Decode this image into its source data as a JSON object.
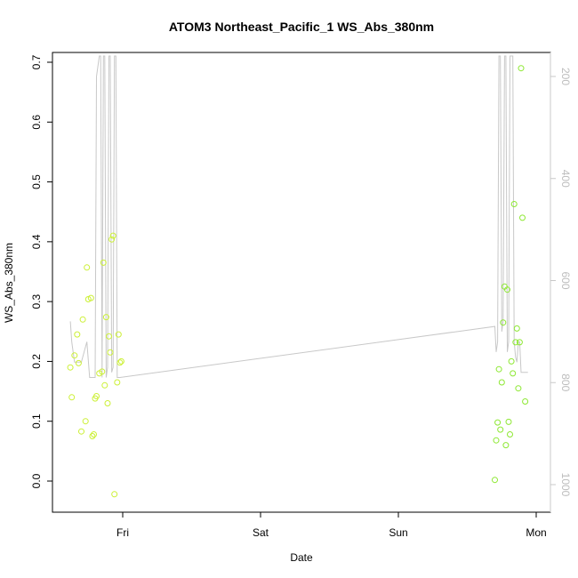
{
  "chart_data": {
    "type": "scatter",
    "title": "ATOM3 Northeast_Pacific_1 WS_Abs_380nm",
    "xlabel": "Date",
    "ylabel": "WS_Abs_380nm",
    "x_ticks": [
      "Fri",
      "Sat",
      "Sun",
      "Mon"
    ],
    "y_ticks": [
      "0.0",
      "0.1",
      "0.2",
      "0.3",
      "0.4",
      "0.5",
      "0.6",
      "0.7"
    ],
    "y_right_ticks": [
      "200",
      "400",
      "600",
      "800",
      "1000"
    ],
    "xlim_days": [
      -0.43,
      3.1
    ],
    "ylim": [
      -0.05,
      0.72
    ],
    "y_right_lim": [
      1050,
      165
    ],
    "grid": false,
    "colors": {
      "points_left": "#ccf036",
      "points_right": "#8de832",
      "right_axis_line": "#c8c8c8",
      "right_axis_text": "#bdbdbd"
    },
    "series": [
      {
        "kind": "points",
        "x": [
          -0.38,
          -0.37,
          -0.35,
          -0.33,
          -0.32,
          -0.3,
          -0.29,
          -0.27,
          -0.26,
          -0.25,
          -0.23,
          -0.22,
          -0.21,
          -0.2,
          -0.19,
          -0.17,
          -0.15,
          -0.14,
          -0.13,
          -0.12,
          -0.11,
          -0.1,
          -0.09,
          -0.08,
          -0.07,
          -0.06,
          -0.04,
          -0.03,
          -0.02,
          -0.01,
          2.7,
          2.71,
          2.72,
          2.73,
          2.74,
          2.75,
          2.76,
          2.77,
          2.78,
          2.79,
          2.8,
          2.81,
          2.82,
          2.83,
          2.84,
          2.85,
          2.86,
          2.87,
          2.88,
          2.89,
          2.9,
          2.92
        ],
        "y": [
          0.19,
          0.14,
          0.21,
          0.245,
          0.197,
          0.083,
          0.27,
          0.1,
          0.357,
          0.304,
          0.306,
          0.075,
          0.078,
          0.138,
          0.142,
          0.18,
          0.183,
          0.365,
          0.16,
          0.274,
          0.13,
          0.242,
          0.215,
          0.404,
          0.41,
          -0.022,
          0.165,
          0.245,
          0.198,
          0.2,
          0.002,
          0.068,
          0.098,
          0.187,
          0.086,
          0.165,
          0.265,
          0.325,
          0.06,
          0.32,
          0.099,
          0.078,
          0.2,
          0.18,
          0.463,
          0.232,
          0.255,
          0.155,
          0.232,
          0.69,
          0.44,
          0.133
        ]
      },
      {
        "kind": "line",
        "name": "",
        "x": [
          -0.38,
          -0.37,
          -0.35,
          -0.3,
          -0.26,
          -0.24,
          -0.22,
          -0.2,
          -0.19,
          -0.17,
          -0.16,
          -0.15,
          -0.14,
          -0.13,
          -0.12,
          -0.11,
          -0.1,
          -0.09,
          -0.08,
          -0.07,
          -0.06,
          -0.05,
          -0.04,
          -0.03,
          -0.02,
          2.7,
          2.71,
          2.72,
          2.73,
          2.74,
          2.75,
          2.76,
          2.77,
          2.78,
          2.79,
          2.8,
          2.81,
          2.82,
          2.83,
          2.84,
          2.85,
          2.86,
          2.87,
          2.88,
          2.89,
          2.9,
          2.92,
          2.94
        ],
        "y": [
          680,
          720,
          760,
          760,
          720,
          790,
          790,
          790,
          200,
          160,
          160,
          790,
          160,
          160,
          790,
          770,
          160,
          160,
          780,
          770,
          160,
          160,
          790,
          790,
          790,
          690,
          740,
          720,
          160,
          160,
          700,
          680,
          160,
          160,
          740,
          720,
          160,
          160,
          160,
          720,
          750,
          760,
          720,
          720,
          780,
          780,
          780,
          780
        ]
      }
    ]
  }
}
